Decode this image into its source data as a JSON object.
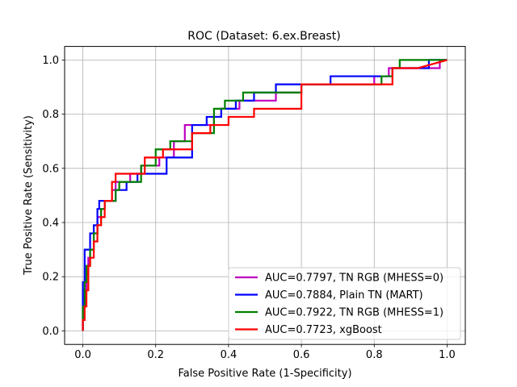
{
  "chart_data": {
    "type": "line",
    "title": "ROC (Dataset: 6.ex.Breast)",
    "xlabel": "False Positive Rate (1-Specificity)",
    "ylabel": "True Positive Rate (Sensitivity)",
    "xlim": [
      -0.05,
      1.05
    ],
    "ylim": [
      -0.05,
      1.05
    ],
    "xticks": [
      "0.0",
      "0.2",
      "0.4",
      "0.6",
      "0.8",
      "1.0"
    ],
    "yticks": [
      "0.0",
      "0.2",
      "0.4",
      "0.6",
      "0.8",
      "1.0"
    ],
    "grid": true,
    "legend_position": "lower-right",
    "series": [
      {
        "name": "AUC=0.7797, TN RGB (MHESS=0)",
        "color": "#bf00bf",
        "x": [
          0.0,
          0.0,
          0.005,
          0.005,
          0.01,
          0.01,
          0.015,
          0.015,
          0.02,
          0.02,
          0.03,
          0.03,
          0.04,
          0.04,
          0.05,
          0.05,
          0.06,
          0.06,
          0.08,
          0.08,
          0.09,
          0.09,
          0.13,
          0.13,
          0.16,
          0.16,
          0.18,
          0.18,
          0.21,
          0.21,
          0.25,
          0.25,
          0.28,
          0.28,
          0.32,
          0.32,
          0.36,
          0.36,
          0.38,
          0.38,
          0.43,
          0.43,
          0.53,
          0.53,
          0.6,
          0.6,
          0.8,
          0.8,
          0.84,
          0.84,
          0.97,
          0.97,
          0.98,
          0.98,
          1.0
        ],
        "y": [
          0.0,
          0.09,
          0.09,
          0.15,
          0.15,
          0.21,
          0.21,
          0.27,
          0.27,
          0.3,
          0.3,
          0.36,
          0.36,
          0.42,
          0.42,
          0.45,
          0.45,
          0.48,
          0.48,
          0.52,
          0.52,
          0.55,
          0.55,
          0.58,
          0.58,
          0.61,
          0.61,
          0.61,
          0.61,
          0.64,
          0.64,
          0.7,
          0.7,
          0.76,
          0.76,
          0.76,
          0.76,
          0.79,
          0.79,
          0.82,
          0.82,
          0.85,
          0.85,
          0.88,
          0.88,
          0.91,
          0.91,
          0.94,
          0.94,
          0.97,
          0.97,
          0.97,
          0.97,
          1.0,
          1.0
        ]
      },
      {
        "name": "AUC=0.7884, Plain TN (MART)",
        "color": "#0000ff",
        "x": [
          0.0,
          0.0,
          0.005,
          0.005,
          0.01,
          0.01,
          0.02,
          0.02,
          0.03,
          0.03,
          0.04,
          0.04,
          0.045,
          0.045,
          0.05,
          0.05,
          0.08,
          0.08,
          0.09,
          0.09,
          0.12,
          0.12,
          0.15,
          0.15,
          0.18,
          0.18,
          0.23,
          0.23,
          0.3,
          0.3,
          0.34,
          0.34,
          0.38,
          0.38,
          0.42,
          0.42,
          0.47,
          0.47,
          0.53,
          0.53,
          0.68,
          0.68,
          0.82,
          0.82,
          0.85,
          0.85,
          0.95,
          0.95,
          1.0
        ],
        "y": [
          0.0,
          0.18,
          0.18,
          0.3,
          0.3,
          0.3,
          0.3,
          0.36,
          0.36,
          0.39,
          0.39,
          0.45,
          0.45,
          0.48,
          0.48,
          0.48,
          0.48,
          0.48,
          0.48,
          0.52,
          0.52,
          0.55,
          0.55,
          0.58,
          0.58,
          0.58,
          0.58,
          0.64,
          0.64,
          0.76,
          0.76,
          0.79,
          0.79,
          0.82,
          0.82,
          0.85,
          0.85,
          0.88,
          0.88,
          0.91,
          0.91,
          0.94,
          0.94,
          0.94,
          0.94,
          0.97,
          0.97,
          1.0,
          1.0
        ]
      },
      {
        "name": "AUC=0.7922, TN RGB (MHESS=1)",
        "color": "#008000",
        "x": [
          0.0,
          0.0,
          0.005,
          0.005,
          0.01,
          0.01,
          0.02,
          0.02,
          0.03,
          0.03,
          0.04,
          0.04,
          0.05,
          0.05,
          0.06,
          0.06,
          0.09,
          0.09,
          0.1,
          0.1,
          0.16,
          0.16,
          0.2,
          0.2,
          0.24,
          0.24,
          0.3,
          0.3,
          0.36,
          0.36,
          0.39,
          0.39,
          0.44,
          0.44,
          0.6,
          0.6,
          0.82,
          0.82,
          0.85,
          0.85,
          0.87,
          0.87,
          1.0
        ],
        "y": [
          0.0,
          0.09,
          0.09,
          0.18,
          0.18,
          0.24,
          0.24,
          0.3,
          0.3,
          0.36,
          0.36,
          0.39,
          0.39,
          0.45,
          0.45,
          0.48,
          0.48,
          0.52,
          0.52,
          0.55,
          0.55,
          0.61,
          0.61,
          0.67,
          0.67,
          0.7,
          0.7,
          0.73,
          0.73,
          0.82,
          0.82,
          0.85,
          0.85,
          0.88,
          0.88,
          0.91,
          0.91,
          0.94,
          0.94,
          0.97,
          0.97,
          1.0,
          1.0
        ]
      },
      {
        "name": "AUC=0.7723, xgBoost",
        "color": "#ff0000",
        "x": [
          0.0,
          0.0,
          0.005,
          0.005,
          0.01,
          0.01,
          0.015,
          0.015,
          0.02,
          0.02,
          0.03,
          0.03,
          0.04,
          0.04,
          0.05,
          0.05,
          0.06,
          0.06,
          0.08,
          0.08,
          0.09,
          0.09,
          0.17,
          0.17,
          0.22,
          0.22,
          0.3,
          0.3,
          0.35,
          0.35,
          0.4,
          0.4,
          0.47,
          0.47,
          0.6,
          0.6,
          0.85,
          0.85,
          0.92,
          1.0
        ],
        "y": [
          0.0,
          0.04,
          0.04,
          0.09,
          0.09,
          0.15,
          0.15,
          0.24,
          0.24,
          0.27,
          0.27,
          0.33,
          0.33,
          0.39,
          0.39,
          0.42,
          0.42,
          0.48,
          0.48,
          0.55,
          0.55,
          0.58,
          0.58,
          0.64,
          0.64,
          0.67,
          0.67,
          0.73,
          0.73,
          0.76,
          0.76,
          0.79,
          0.79,
          0.82,
          0.82,
          0.91,
          0.91,
          0.97,
          0.97,
          1.0
        ]
      }
    ]
  }
}
